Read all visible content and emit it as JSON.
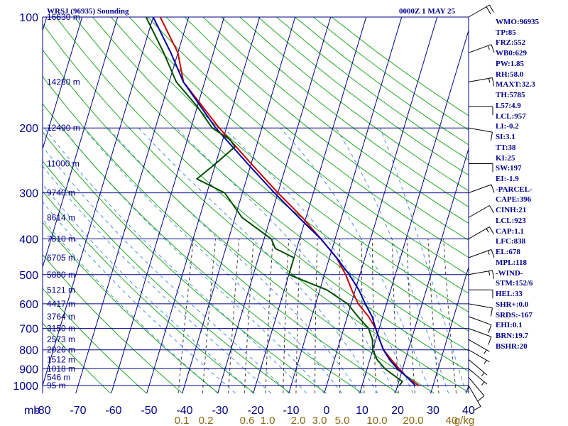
{
  "header": {
    "station": "WRSJ (96935) Sounding",
    "time": "0000Z  1 MAY 25"
  },
  "chart_data": {
    "type": "skew-t",
    "title": "WRSJ (96935) Sounding",
    "pressure_levels": [
      100,
      200,
      300,
      400,
      500,
      600,
      700,
      800,
      900,
      1000
    ],
    "temperature_ticks": [
      -80,
      -70,
      -60,
      -50,
      -40,
      -30,
      -20,
      -10,
      0,
      10,
      20,
      30,
      40
    ],
    "temperature_range": [
      -80,
      40
    ],
    "pressure_range": [
      1000,
      100
    ],
    "pressure_unit_label": "mb",
    "mixing_ratio_labels": [
      "0.1",
      "0.2",
      "0.6",
      "1.0",
      "2.0",
      "3.0",
      "5.0",
      "10.0",
      "20.0",
      "40",
      "g/kg"
    ],
    "heights": [
      {
        "p": 100,
        "label": "16630 m"
      },
      {
        "p": 150,
        "label": "14280 m"
      },
      {
        "p": 200,
        "label": "12490 m"
      },
      {
        "p": 250,
        "label": "11000 m"
      },
      {
        "p": 300,
        "label": "9740 m"
      },
      {
        "p": 350,
        "label": "8614 m"
      },
      {
        "p": 400,
        "label": "7610 m"
      },
      {
        "p": 450,
        "label": "6705 m"
      },
      {
        "p": 500,
        "label": "5880 m"
      },
      {
        "p": 550,
        "label": "5121 m"
      },
      {
        "p": 600,
        "label": "4417 m"
      },
      {
        "p": 650,
        "label": "3764 m"
      },
      {
        "p": 700,
        "label": "3150 m"
      },
      {
        "p": 750,
        "label": "2573 m"
      },
      {
        "p": 800,
        "label": "2026 m"
      },
      {
        "p": 850,
        "label": "1512 m"
      },
      {
        "p": 900,
        "label": "1018 m"
      },
      {
        "p": 950,
        "label": "546 m"
      },
      {
        "p": 1000,
        "label": "95 m"
      }
    ],
    "series": [
      {
        "name": "Temperature",
        "color": "#cc0000",
        "points": [
          [
            1000,
            26
          ],
          [
            975,
            24
          ],
          [
            950,
            22
          ],
          [
            900,
            19
          ],
          [
            850,
            16
          ],
          [
            800,
            13
          ],
          [
            750,
            11
          ],
          [
            700,
            9
          ],
          [
            650,
            6
          ],
          [
            600,
            2
          ],
          [
            550,
            -1
          ],
          [
            500,
            -4
          ],
          [
            450,
            -8
          ],
          [
            400,
            -14
          ],
          [
            350,
            -21
          ],
          [
            300,
            -30
          ],
          [
            250,
            -40
          ],
          [
            200,
            -52
          ],
          [
            150,
            -66
          ],
          [
            125,
            -70
          ],
          [
            100,
            -78
          ]
        ]
      },
      {
        "name": "Parcel",
        "color": "#0000aa",
        "points": [
          [
            1000,
            25
          ],
          [
            950,
            22
          ],
          [
            900,
            18.5
          ],
          [
            850,
            15.5
          ],
          [
            800,
            13
          ],
          [
            750,
            11
          ],
          [
            700,
            9
          ],
          [
            650,
            7
          ],
          [
            600,
            4
          ],
          [
            550,
            1
          ],
          [
            500,
            -3
          ],
          [
            450,
            -8
          ],
          [
            400,
            -14
          ],
          [
            350,
            -22
          ],
          [
            300,
            -31
          ],
          [
            250,
            -41
          ],
          [
            200,
            -53
          ],
          [
            150,
            -66
          ],
          [
            125,
            -72
          ],
          [
            100,
            -80
          ]
        ]
      },
      {
        "name": "Dewpoint",
        "color": "#004d00",
        "points": [
          [
            1000,
            20.5
          ],
          [
            975,
            21
          ],
          [
            925,
            17
          ],
          [
            900,
            15
          ],
          [
            850,
            12
          ],
          [
            800,
            10
          ],
          [
            750,
            9
          ],
          [
            700,
            7
          ],
          [
            650,
            3
          ],
          [
            600,
            -1
          ],
          [
            550,
            -8
          ],
          [
            500,
            -20
          ],
          [
            480,
            -20
          ],
          [
            450,
            -20
          ],
          [
            425,
            -26
          ],
          [
            400,
            -28
          ],
          [
            350,
            -38
          ],
          [
            300,
            -45
          ],
          [
            275,
            -54
          ],
          [
            250,
            -50
          ],
          [
            225,
            -46
          ],
          [
            215,
            -48
          ],
          [
            200,
            -54
          ],
          [
            175,
            -60
          ],
          [
            150,
            -68
          ],
          [
            125,
            -74
          ],
          [
            100,
            -82
          ]
        ]
      }
    ],
    "wind_barbs": [
      {
        "p": 100,
        "dir": 60,
        "spd": 20
      },
      {
        "p": 125,
        "dir": 70,
        "spd": 15
      },
      {
        "p": 150,
        "dir": 80,
        "spd": 15
      },
      {
        "p": 175,
        "dir": 90,
        "spd": 10
      },
      {
        "p": 200,
        "dir": 100,
        "spd": 10
      },
      {
        "p": 250,
        "dir": 90,
        "spd": 10
      },
      {
        "p": 300,
        "dir": 70,
        "spd": 10
      },
      {
        "p": 350,
        "dir": 60,
        "spd": 10
      },
      {
        "p": 400,
        "dir": 60,
        "spd": 15
      },
      {
        "p": 450,
        "dir": 70,
        "spd": 15
      },
      {
        "p": 500,
        "dir": 80,
        "spd": 15
      },
      {
        "p": 550,
        "dir": 90,
        "spd": 10
      },
      {
        "p": 600,
        "dir": 100,
        "spd": 10
      },
      {
        "p": 650,
        "dir": 110,
        "spd": 10
      },
      {
        "p": 700,
        "dir": 110,
        "spd": 10
      },
      {
        "p": 750,
        "dir": 120,
        "spd": 5
      },
      {
        "p": 800,
        "dir": 120,
        "spd": 5
      },
      {
        "p": 850,
        "dir": 130,
        "spd": 5
      },
      {
        "p": 900,
        "dir": 130,
        "spd": 5
      },
      {
        "p": 950,
        "dir": 140,
        "spd": 10
      },
      {
        "p": 1000,
        "dir": 150,
        "spd": 10
      }
    ]
  },
  "stats": [
    "WMO:96935",
    "TP:85",
    "FRZ:552",
    "WB0:629",
    "PW:1.85",
    "RH:58.0",
    "MAXT:32.3",
    "TH:5785",
    "L57:4.9",
    "LCL:957",
    "LI:-0.2",
    "SI:3.1",
    "TT:38",
    "KI:25",
    "SW:197",
    "EI:-1.9",
    "-PARCEL-",
    "CAPE:396",
    "CINH:21",
    "LCL:923",
    "CAP:1.1",
    "LFC:838",
    "EL:678",
    "MPL:118",
    "-WIND-",
    "STM:152/6",
    "HEL:33",
    "SHR+:0.0",
    "SRDS:-167",
    "EHI:0.1",
    "BRN:19.7",
    "BSHR:20"
  ]
}
